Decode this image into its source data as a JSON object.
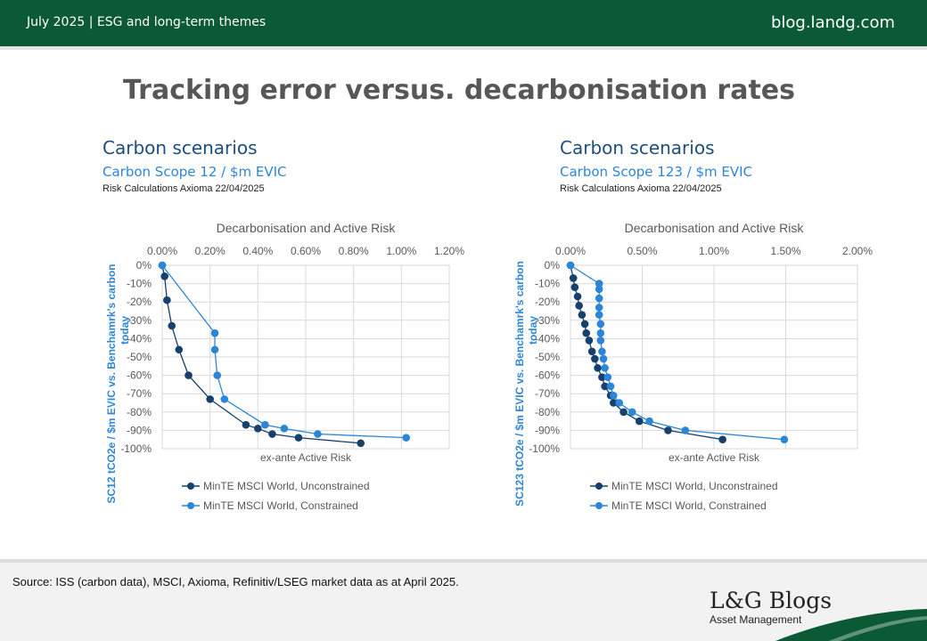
{
  "header": {
    "left": "July 2025 | ESG and long-term themes",
    "right": "blog.landg.com"
  },
  "title": "Tracking error versus. decarbonisation rates",
  "panels": [
    {
      "heading": "Carbon scenarios",
      "subheading": "Carbon Scope 12 / $m EVIC",
      "note": "Risk Calculations Axioma 22/04/2025"
    },
    {
      "heading": "Carbon scenarios",
      "subheading": "Carbon Scope 123 / $m EVIC",
      "note": "Risk Calculations Axioma 22/04/2025"
    }
  ],
  "footer": {
    "source": "Source: ISS (carbon data), MSCI, Axioma, Refinitiv/LSEG market data as at April 2025.",
    "logo_text": "L&G Blogs",
    "logo_sub": "Asset Management"
  },
  "colors": {
    "brand_green": "#0b5a35",
    "unconstrained": "#17406d",
    "constrained": "#2b86d6",
    "heading_blue": "#1b4f7f"
  },
  "chart_data": [
    {
      "type": "scatter",
      "title": "Decarbonisation and Active Risk",
      "xlabel": "ex-ante Active Risk",
      "ylabel_line1": "SC12 tCO2e / $m EVIC vs. Benchamrk's carbon",
      "ylabel_line2": "today",
      "xlim": [
        0,
        1.2
      ],
      "ylim": [
        -100,
        0
      ],
      "x_ticks": [
        "0.00%",
        "0.20%",
        "0.40%",
        "0.60%",
        "0.80%",
        "1.00%",
        "1.20%"
      ],
      "y_ticks": [
        "0%",
        "-10%",
        "-20%",
        "-30%",
        "-40%",
        "-50%",
        "-60%",
        "-70%",
        "-80%",
        "-90%",
        "-100%"
      ],
      "legend_position": "bottom",
      "series": [
        {
          "name": "MinTE MSCI World, Unconstrained",
          "points": [
            [
              0.0,
              0
            ],
            [
              0.01,
              -6
            ],
            [
              0.02,
              -19
            ],
            [
              0.04,
              -33
            ],
            [
              0.07,
              -46
            ],
            [
              0.11,
              -60
            ],
            [
              0.2,
              -73
            ],
            [
              0.35,
              -87
            ],
            [
              0.4,
              -89
            ],
            [
              0.46,
              -92
            ],
            [
              0.57,
              -94
            ],
            [
              0.83,
              -97
            ]
          ]
        },
        {
          "name": "MinTE MSCI World, Constrained",
          "points": [
            [
              0.0,
              0
            ],
            [
              0.22,
              -37
            ],
            [
              0.22,
              -46
            ],
            [
              0.23,
              -60
            ],
            [
              0.26,
              -73
            ],
            [
              0.43,
              -87
            ],
            [
              0.51,
              -89
            ],
            [
              0.65,
              -92
            ],
            [
              1.02,
              -94
            ]
          ]
        }
      ]
    },
    {
      "type": "scatter",
      "title": "Decarbonisation and Active Risk",
      "xlabel": "ex-ante Active Risk",
      "ylabel_line1": "SC123 tCO2e / $m EVIC vs. Benchamrk's carbon",
      "ylabel_line2": "today",
      "xlim": [
        0,
        2.0
      ],
      "ylim": [
        -100,
        0
      ],
      "x_ticks": [
        "0.00%",
        "0.50%",
        "1.00%",
        "1.50%",
        "2.00%"
      ],
      "y_ticks": [
        "0%",
        "-10%",
        "-20%",
        "-30%",
        "-40%",
        "-50%",
        "-60%",
        "-70%",
        "-80%",
        "-90%",
        "-100%"
      ],
      "legend_position": "bottom",
      "series": [
        {
          "name": "MinTE MSCI World, Unconstrained",
          "points": [
            [
              0.0,
              0
            ],
            [
              0.02,
              -7
            ],
            [
              0.03,
              -12
            ],
            [
              0.05,
              -17
            ],
            [
              0.06,
              -22
            ],
            [
              0.08,
              -27
            ],
            [
              0.1,
              -32
            ],
            [
              0.11,
              -37
            ],
            [
              0.13,
              -41
            ],
            [
              0.15,
              -47
            ],
            [
              0.17,
              -51
            ],
            [
              0.19,
              -56
            ],
            [
              0.22,
              -61
            ],
            [
              0.24,
              -66
            ],
            [
              0.28,
              -71
            ],
            [
              0.3,
              -75
            ],
            [
              0.37,
              -80
            ],
            [
              0.48,
              -85
            ],
            [
              0.68,
              -90
            ],
            [
              1.06,
              -95
            ]
          ]
        },
        {
          "name": "MinTE MSCI World, Constrained",
          "points": [
            [
              0.0,
              0
            ],
            [
              0.2,
              -10
            ],
            [
              0.2,
              -13
            ],
            [
              0.2,
              -18
            ],
            [
              0.2,
              -23
            ],
            [
              0.2,
              -27
            ],
            [
              0.21,
              -32
            ],
            [
              0.21,
              -37
            ],
            [
              0.21,
              -41
            ],
            [
              0.22,
              -47
            ],
            [
              0.23,
              -51
            ],
            [
              0.24,
              -56
            ],
            [
              0.26,
              -61
            ],
            [
              0.28,
              -66
            ],
            [
              0.3,
              -71
            ],
            [
              0.34,
              -75
            ],
            [
              0.43,
              -80
            ],
            [
              0.55,
              -85
            ],
            [
              0.8,
              -90
            ],
            [
              1.49,
              -95
            ]
          ]
        }
      ]
    }
  ]
}
